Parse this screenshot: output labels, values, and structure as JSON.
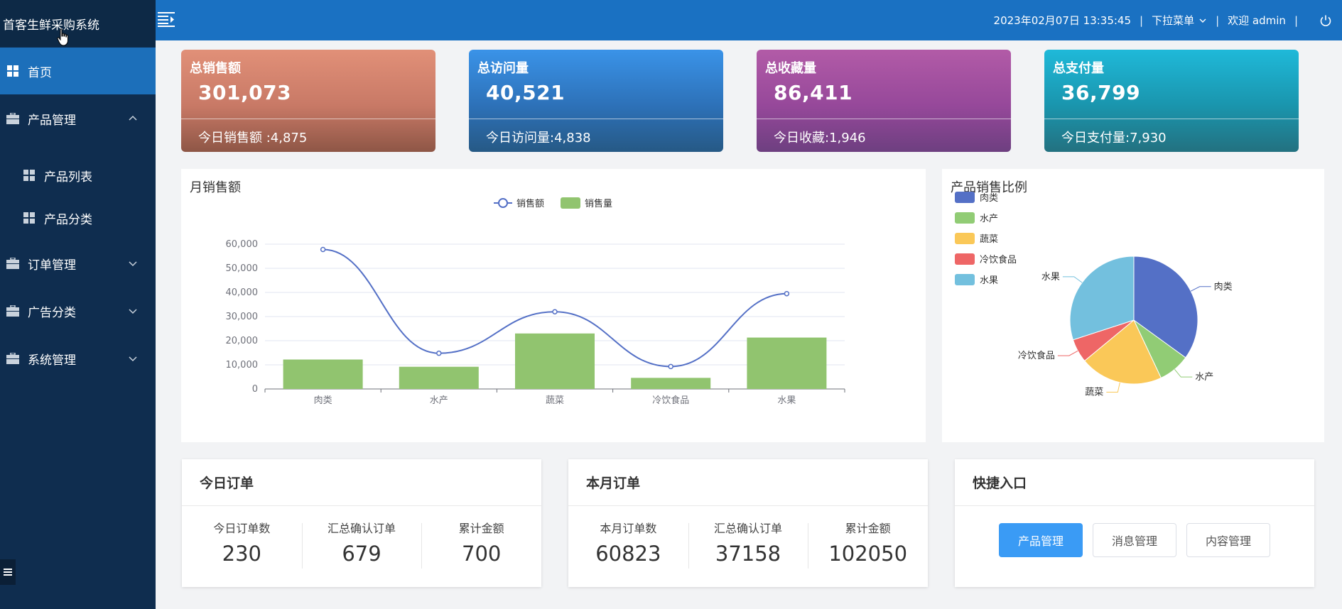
{
  "app": {
    "title": "首客生鲜采购系统"
  },
  "sidebar": {
    "home": "首页",
    "product_mgmt": "产品管理",
    "product_list": "产品列表",
    "product_category": "产品分类",
    "order_mgmt": "订单管理",
    "ad_category": "广告分类",
    "system_mgmt": "系统管理"
  },
  "header": {
    "datetime": "2023年02月07日 13:35:45",
    "sep": "|",
    "dropdown": "下拉菜单",
    "welcome": "欢迎 admin"
  },
  "stats": [
    {
      "title": "总销售额",
      "value": "301,073",
      "sub": "今日销售额 :4,875"
    },
    {
      "title": "总访问量",
      "value": "40,521",
      "sub": "今日访问量:4,838"
    },
    {
      "title": "总收藏量",
      "value": "86,411",
      "sub": "今日收藏:1,946"
    },
    {
      "title": "总支付量",
      "value": "36,799",
      "sub": "今日支付量:7,930"
    }
  ],
  "colors": {
    "line": "#5470c6",
    "bar": "#91c46f",
    "pie": [
      "#5470c6",
      "#91cc75",
      "#fac858",
      "#ee6666",
      "#73c0de"
    ]
  },
  "chart_data": [
    {
      "type": "bar",
      "title": "月销售额",
      "categories": [
        "肉类",
        "水产",
        "蔬菜",
        "冷饮食品",
        "水果"
      ],
      "series": [
        {
          "name": "销售额",
          "kind": "line",
          "values": [
            57800,
            14800,
            32000,
            9300,
            39500
          ]
        },
        {
          "name": "销售量",
          "kind": "bar",
          "values": [
            12200,
            9200,
            23000,
            4600,
            21300
          ]
        }
      ],
      "yticks": [
        "0",
        "10,000",
        "20,000",
        "30,000",
        "40,000",
        "50,000",
        "60,000"
      ],
      "ylim": [
        0,
        60000
      ],
      "legend": "top-center"
    },
    {
      "type": "pie",
      "title": "产品销售比例",
      "labels": [
        "肉类",
        "水产",
        "蔬菜",
        "冷饮食品",
        "水果"
      ],
      "values": [
        35,
        8,
        21,
        6,
        30
      ],
      "legend": "top-left"
    }
  ],
  "today_orders": {
    "title": "今日订单",
    "items": [
      {
        "label": "今日订单数",
        "value": "230"
      },
      {
        "label": "汇总确认订单",
        "value": "679"
      },
      {
        "label": "累计金额",
        "value": "700"
      }
    ]
  },
  "month_orders": {
    "title": "本月订单",
    "items": [
      {
        "label": "本月订单数",
        "value": "60823"
      },
      {
        "label": "汇总确认订单",
        "value": "37158"
      },
      {
        "label": "累计金额",
        "value": "102050"
      }
    ]
  },
  "quick": {
    "title": "快捷入口",
    "buttons": [
      "产品管理",
      "消息管理",
      "内容管理"
    ]
  }
}
